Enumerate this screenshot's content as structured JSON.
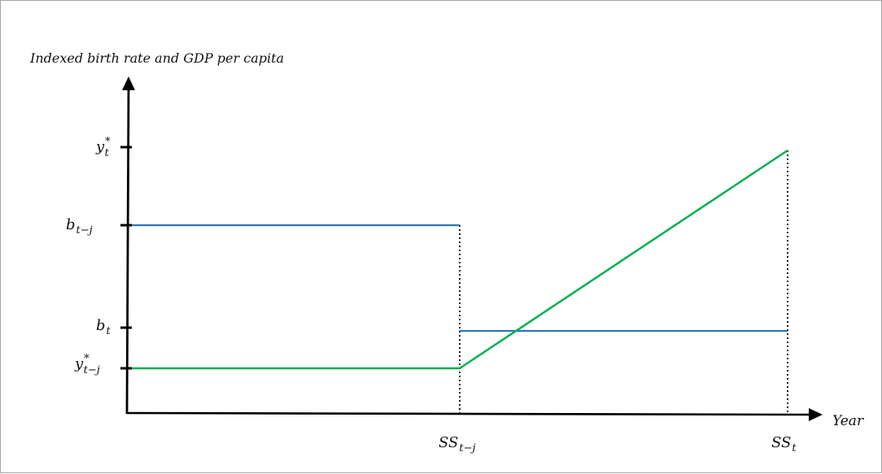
{
  "diagram": {
    "y_axis_title": "Indexed birth rate and GDP per capita",
    "x_axis_title": "Year",
    "y_ticks": [
      {
        "id": "y-star-t",
        "base": "y",
        "sup": "*",
        "sub": "t"
      },
      {
        "id": "b-t-minus-j",
        "base": "b",
        "sup": "",
        "sub": "t−j"
      },
      {
        "id": "b-t",
        "base": "b",
        "sup": "",
        "sub": "t"
      },
      {
        "id": "y-star-t-minus-j",
        "base": "y",
        "sup": "*",
        "sub": "t−j"
      }
    ],
    "x_ticks": [
      {
        "id": "ss-t-minus-j",
        "base": "SS",
        "sub": "t−j"
      },
      {
        "id": "ss-t",
        "base": "SS",
        "sub": "t"
      }
    ],
    "colors": {
      "birth_rate_line": "#2e75b6",
      "gdp_line": "#00b050",
      "axis": "#000000",
      "guide": "#000000"
    }
  }
}
